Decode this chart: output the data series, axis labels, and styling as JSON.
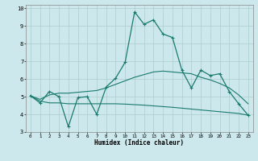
{
  "title": "",
  "xlabel": "Humidex (Indice chaleur)",
  "bg_color": "#cce8ec",
  "grid_color": "#aacccc",
  "line_color": "#1a7a6e",
  "xlim": [
    -0.5,
    23.5
  ],
  "ylim": [
    3,
    10.2
  ],
  "xticks": [
    0,
    1,
    2,
    3,
    4,
    5,
    6,
    7,
    8,
    9,
    10,
    11,
    12,
    13,
    14,
    15,
    16,
    17,
    18,
    19,
    20,
    21,
    22,
    23
  ],
  "yticks": [
    3,
    4,
    5,
    6,
    7,
    8,
    9,
    10
  ],
  "line1_x": [
    0,
    1,
    2,
    3,
    4,
    5,
    6,
    7,
    8,
    9,
    10,
    11,
    12,
    13,
    14,
    15,
    16,
    17,
    18,
    19,
    20,
    21,
    22,
    23
  ],
  "line1_y": [
    5.05,
    4.65,
    5.3,
    5.0,
    3.3,
    4.95,
    5.0,
    4.0,
    5.55,
    6.05,
    6.95,
    9.8,
    9.1,
    9.35,
    8.55,
    8.35,
    6.5,
    5.5,
    6.5,
    6.2,
    6.3,
    5.3,
    4.6,
    3.95
  ],
  "line2_x": [
    0,
    1,
    2,
    3,
    4,
    5,
    6,
    7,
    8,
    9,
    10,
    11,
    12,
    13,
    14,
    15,
    16,
    17,
    18,
    19,
    20,
    21,
    22,
    23
  ],
  "line2_y": [
    5.05,
    4.85,
    5.1,
    5.2,
    5.2,
    5.25,
    5.3,
    5.35,
    5.5,
    5.7,
    5.9,
    6.1,
    6.25,
    6.4,
    6.45,
    6.4,
    6.35,
    6.3,
    6.1,
    5.95,
    5.75,
    5.5,
    5.1,
    4.6
  ],
  "line3_x": [
    0,
    1,
    2,
    3,
    4,
    5,
    6,
    7,
    8,
    9,
    10,
    11,
    12,
    13,
    14,
    15,
    16,
    17,
    18,
    19,
    20,
    21,
    22,
    23
  ],
  "line3_y": [
    5.05,
    4.75,
    4.65,
    4.65,
    4.6,
    4.6,
    4.6,
    4.6,
    4.6,
    4.6,
    4.58,
    4.55,
    4.52,
    4.48,
    4.44,
    4.4,
    4.35,
    4.3,
    4.25,
    4.2,
    4.15,
    4.1,
    4.05,
    3.95
  ]
}
